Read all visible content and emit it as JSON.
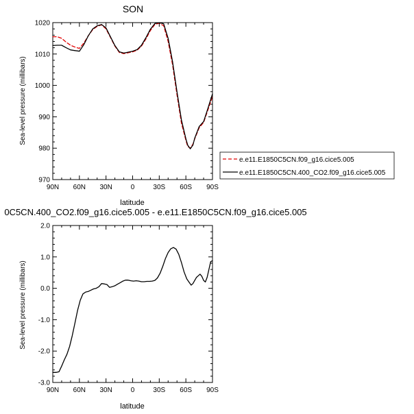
{
  "figure": {
    "top_title": "SON",
    "middle_title": "0C5CN.400_CO2.f09_g16.cice5.005 - e.e11.E1850C5CN.f09_g16.cice5.005"
  },
  "chart_data": [
    {
      "type": "line",
      "title": "SON",
      "xlabel": "latitude",
      "ylabel": "Sea-level pressure (millibars)",
      "xlim": [
        90,
        -90
      ],
      "ylim": [
        970,
        1020
      ],
      "x_ticks": [
        90,
        60,
        30,
        0,
        -30,
        -60,
        -90
      ],
      "x_tick_labels": [
        "90N",
        "60N",
        "30N",
        "0",
        "30S",
        "60S",
        "90S"
      ],
      "y_ticks": [
        970,
        980,
        990,
        1000,
        1010,
        1020
      ],
      "y_tick_labels": [
        "970",
        "980",
        "990",
        "1000",
        "1010",
        "1020"
      ],
      "legend_position": "right",
      "series": [
        {
          "name": "e.e11.E1850C5CN.f09_g16.cice5.005",
          "color": "#e00000",
          "dash": "dashed",
          "x": [
            90,
            85,
            80,
            75,
            70,
            65,
            60,
            55,
            50,
            45,
            40,
            35,
            30,
            25,
            20,
            15,
            10,
            5,
            0,
            -5,
            -10,
            -15,
            -20,
            -25,
            -30,
            -35,
            -40,
            -45,
            -50,
            -55,
            -60,
            -62,
            -65,
            -68,
            -70,
            -75,
            -80,
            -85,
            -90
          ],
          "y": [
            1015.5,
            1015.5,
            1015,
            1013.8,
            1012.8,
            1012.2,
            1011.8,
            1013.5,
            1015.8,
            1017.8,
            1018.8,
            1019.3,
            1018,
            1015.3,
            1012.5,
            1010.5,
            1010.1,
            1010.4,
            1010.7,
            1011.2,
            1012.5,
            1014.8,
            1017.5,
            1019.4,
            1019.8,
            1019,
            1014,
            1006.5,
            997,
            988,
            982.5,
            980.6,
            980,
            981.3,
            983,
            986.5,
            988.2,
            992.3,
            996.5
          ]
        },
        {
          "name": "e.e11.E1850C5CN.400_CO2.f09_g16.cice5.005",
          "color": "#000000",
          "dash": "solid",
          "x": [
            90,
            85,
            80,
            75,
            70,
            65,
            60,
            55,
            50,
            45,
            40,
            35,
            30,
            25,
            20,
            15,
            10,
            5,
            0,
            -5,
            -10,
            -15,
            -20,
            -25,
            -30,
            -35,
            -40,
            -45,
            -50,
            -55,
            -60,
            -62,
            -65,
            -68,
            -70,
            -75,
            -80,
            -85,
            -90
          ],
          "y": [
            1012.7,
            1012.8,
            1012.8,
            1012,
            1011.3,
            1011.1,
            1010.9,
            1013,
            1015.8,
            1018,
            1019,
            1019.4,
            1018.3,
            1015.5,
            1012.7,
            1010.7,
            1010.3,
            1010.6,
            1010.9,
            1011.4,
            1012.8,
            1015.2,
            1017.9,
            1019.7,
            1020,
            1019.6,
            1015,
            1007.5,
            998,
            989,
            983,
            981,
            979.8,
            981,
            983.2,
            986.9,
            988.5,
            992.8,
            997.3
          ]
        }
      ]
    },
    {
      "type": "line",
      "title": "0C5CN.400_CO2.f09_g16.cice5.005 - e.e11.E1850C5CN.f09_g16.cice5.005",
      "xlabel": "latitude",
      "ylabel": "Sea-level pressure (millibars)",
      "xlim": [
        90,
        -90
      ],
      "ylim": [
        -3.0,
        2.0
      ],
      "x_ticks": [
        90,
        60,
        30,
        0,
        -30,
        -60,
        -90
      ],
      "x_tick_labels": [
        "90N",
        "60N",
        "30N",
        "0",
        "30S",
        "60S",
        "90S"
      ],
      "y_ticks": [
        -3.0,
        -2.0,
        -1.0,
        0.0,
        1.0,
        2.0
      ],
      "y_tick_labels": [
        "-3.0",
        "-2.0",
        "-1.0",
        "0.0",
        "1.0",
        "2.0"
      ],
      "series": [
        {
          "color": "#000000",
          "dash": "solid",
          "x": [
            90,
            86,
            83,
            80,
            77,
            74,
            71,
            68,
            65,
            62,
            59,
            56,
            53,
            50,
            47,
            44,
            41,
            38,
            35,
            32,
            29,
            26,
            23,
            20,
            17,
            14,
            11,
            8,
            5,
            2,
            -1,
            -4,
            -7,
            -10,
            -13,
            -16,
            -19,
            -22,
            -25,
            -28,
            -31,
            -34,
            -37,
            -40,
            -43,
            -46,
            -49,
            -52,
            -55,
            -58,
            -61,
            -64,
            -66,
            -68,
            -70,
            -72,
            -74,
            -76,
            -78,
            -80,
            -82,
            -84,
            -86,
            -88,
            -90
          ],
          "y": [
            -2.68,
            -2.68,
            -2.66,
            -2.48,
            -2.28,
            -2.1,
            -1.85,
            -1.5,
            -1.1,
            -0.7,
            -0.38,
            -0.18,
            -0.12,
            -0.1,
            -0.06,
            -0.02,
            0.0,
            0.05,
            0.15,
            0.14,
            0.12,
            0.03,
            0.05,
            0.08,
            0.13,
            0.18,
            0.23,
            0.26,
            0.26,
            0.24,
            0.23,
            0.24,
            0.23,
            0.21,
            0.21,
            0.22,
            0.22,
            0.23,
            0.25,
            0.33,
            0.48,
            0.7,
            0.95,
            1.14,
            1.26,
            1.3,
            1.25,
            1.08,
            0.82,
            0.52,
            0.3,
            0.18,
            0.1,
            0.15,
            0.25,
            0.35,
            0.4,
            0.45,
            0.38,
            0.25,
            0.2,
            0.35,
            0.6,
            0.85,
            0.88
          ]
        }
      ]
    }
  ]
}
